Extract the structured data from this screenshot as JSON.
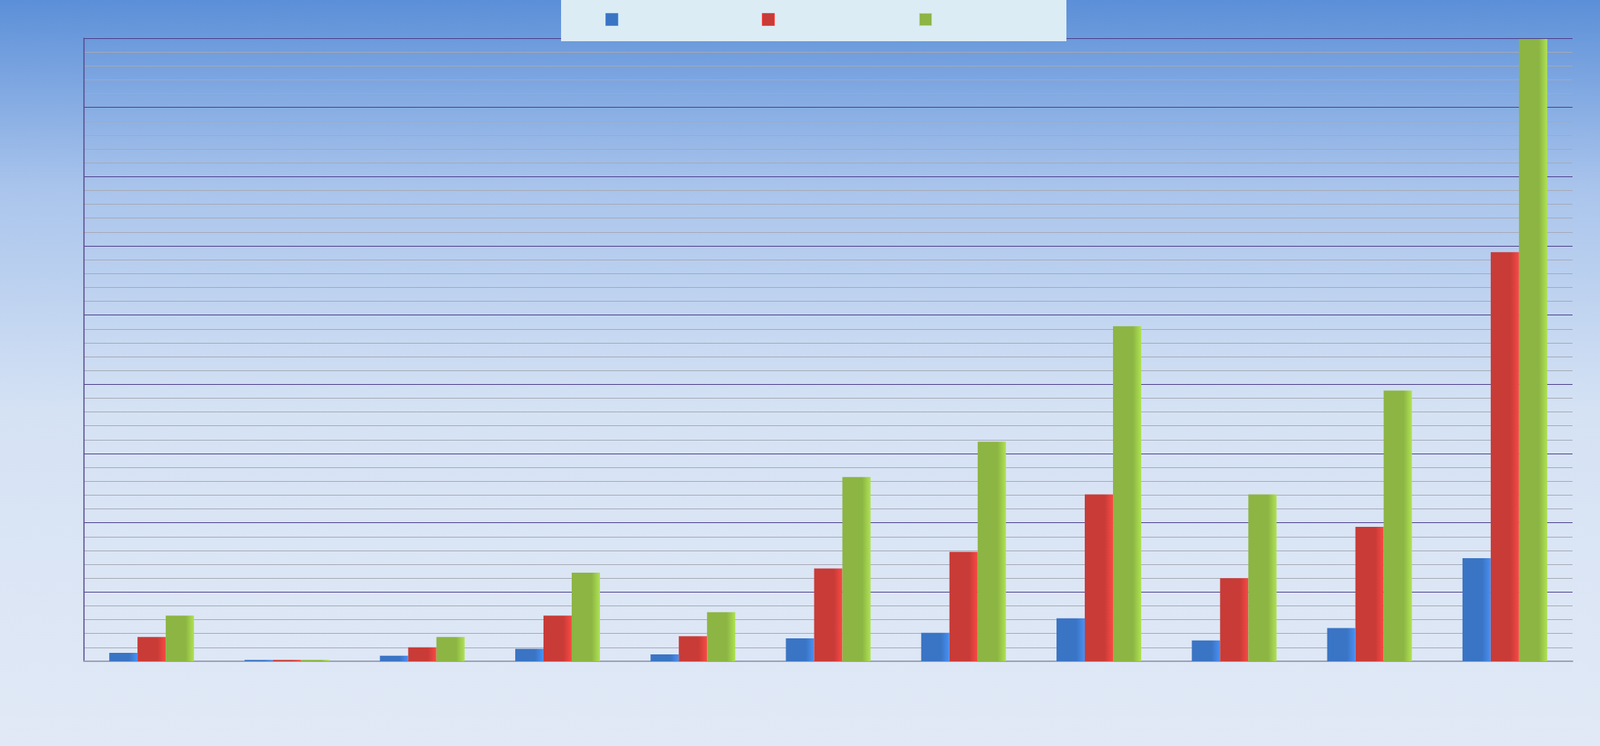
{
  "chart_data": {
    "type": "bar",
    "categories": [
      null,
      null,
      null,
      null,
      null,
      null,
      null,
      null,
      null,
      null,
      null
    ],
    "series": [
      {
        "color": "#3a74c4",
        "values": [
          0.12,
          0.02,
          0.08,
          0.18,
          0.1,
          0.33,
          0.41,
          0.62,
          0.3,
          0.48,
          1.49
        ]
      },
      {
        "color": "#c83b37",
        "values": [
          0.35,
          0.02,
          0.2,
          0.66,
          0.36,
          1.34,
          1.58,
          2.41,
          1.2,
          1.94,
          5.91
        ]
      },
      {
        "color": "#8cb543",
        "values": [
          0.66,
          0.02,
          0.35,
          1.28,
          0.71,
          2.66,
          3.17,
          4.84,
          2.41,
          3.91,
          8.99
        ]
      }
    ],
    "ylim": [
      0,
      9
    ],
    "yticks": [
      0,
      1,
      2,
      3,
      4,
      5,
      6,
      7,
      8,
      9
    ],
    "grid": true,
    "tick_labels": false
  }
}
